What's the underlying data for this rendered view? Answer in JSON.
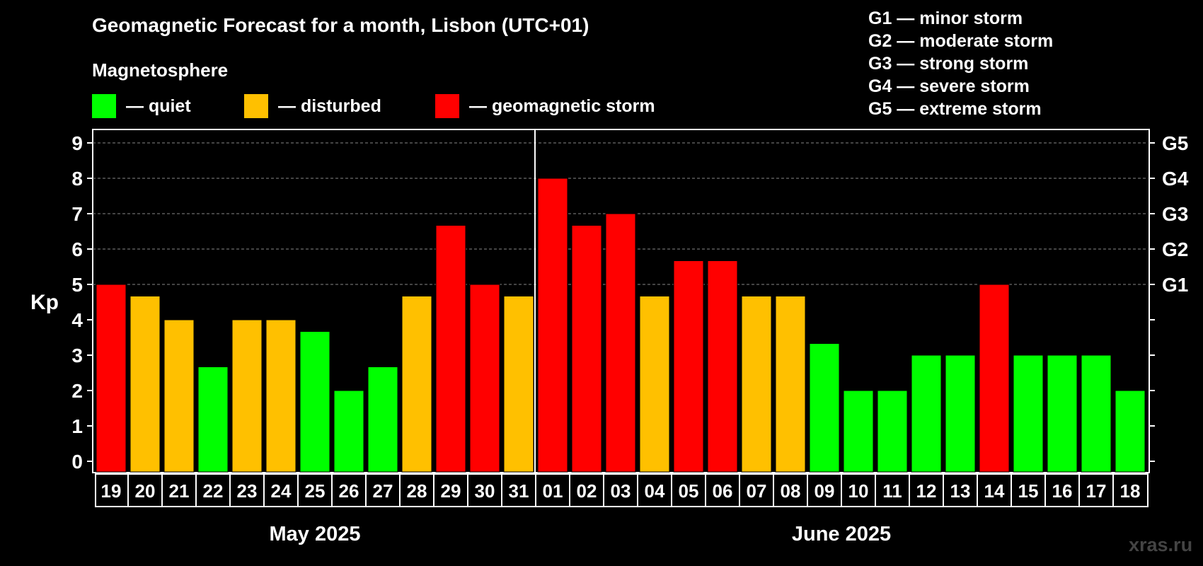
{
  "header": {
    "title": "Geomagnetic Forecast for a month, Lisbon (UTC+01)",
    "subtitle": "Magnetosphere",
    "legend": [
      {
        "label": "— quiet",
        "color": "#00ff00"
      },
      {
        "label": "— disturbed",
        "color": "#ffc000"
      },
      {
        "label": "— geomagnetic storm",
        "color": "#ff0000"
      }
    ],
    "storm_levels": [
      "G1 — minor storm",
      "G2 — moderate storm",
      "G3 — strong storm",
      "G4 — severe storm",
      "G5 — extreme storm"
    ]
  },
  "watermark": "xras.ru",
  "colors": {
    "quiet": "#00ff00",
    "disturbed": "#ffc000",
    "storm": "#ff0000",
    "grid": "#888888"
  },
  "chart_data": {
    "type": "bar",
    "ylabel": "Kp",
    "ylim": [
      0,
      9
    ],
    "yticks": [
      0,
      1,
      2,
      3,
      4,
      5,
      6,
      7,
      8,
      9
    ],
    "right_ticks": [
      {
        "value": 5,
        "label": "G1"
      },
      {
        "value": 6,
        "label": "G2"
      },
      {
        "value": 7,
        "label": "G3"
      },
      {
        "value": 8,
        "label": "G4"
      },
      {
        "value": 9,
        "label": "G5"
      }
    ],
    "grid": true,
    "month_labels": [
      "May 2025",
      "June 2025"
    ],
    "month_split_index": 13,
    "categories": [
      "19",
      "20",
      "21",
      "22",
      "23",
      "24",
      "25",
      "26",
      "27",
      "28",
      "29",
      "30",
      "31",
      "01",
      "02",
      "03",
      "04",
      "05",
      "06",
      "07",
      "08",
      "09",
      "10",
      "11",
      "12",
      "13",
      "14",
      "15",
      "16",
      "17",
      "18"
    ],
    "values": [
      5,
      4.67,
      4,
      2.67,
      4,
      4,
      3.67,
      2,
      2.67,
      4.67,
      6.67,
      5,
      4.67,
      8,
      6.67,
      7,
      4.67,
      5.67,
      5.67,
      4.67,
      4.67,
      3.33,
      2,
      2,
      3,
      3,
      5,
      3,
      3,
      3,
      2
    ],
    "levels": [
      "storm",
      "disturbed",
      "disturbed",
      "quiet",
      "disturbed",
      "disturbed",
      "quiet",
      "quiet",
      "quiet",
      "disturbed",
      "storm",
      "storm",
      "disturbed",
      "storm",
      "storm",
      "storm",
      "disturbed",
      "storm",
      "storm",
      "disturbed",
      "disturbed",
      "quiet",
      "quiet",
      "quiet",
      "quiet",
      "quiet",
      "storm",
      "quiet",
      "quiet",
      "quiet",
      "quiet"
    ]
  }
}
